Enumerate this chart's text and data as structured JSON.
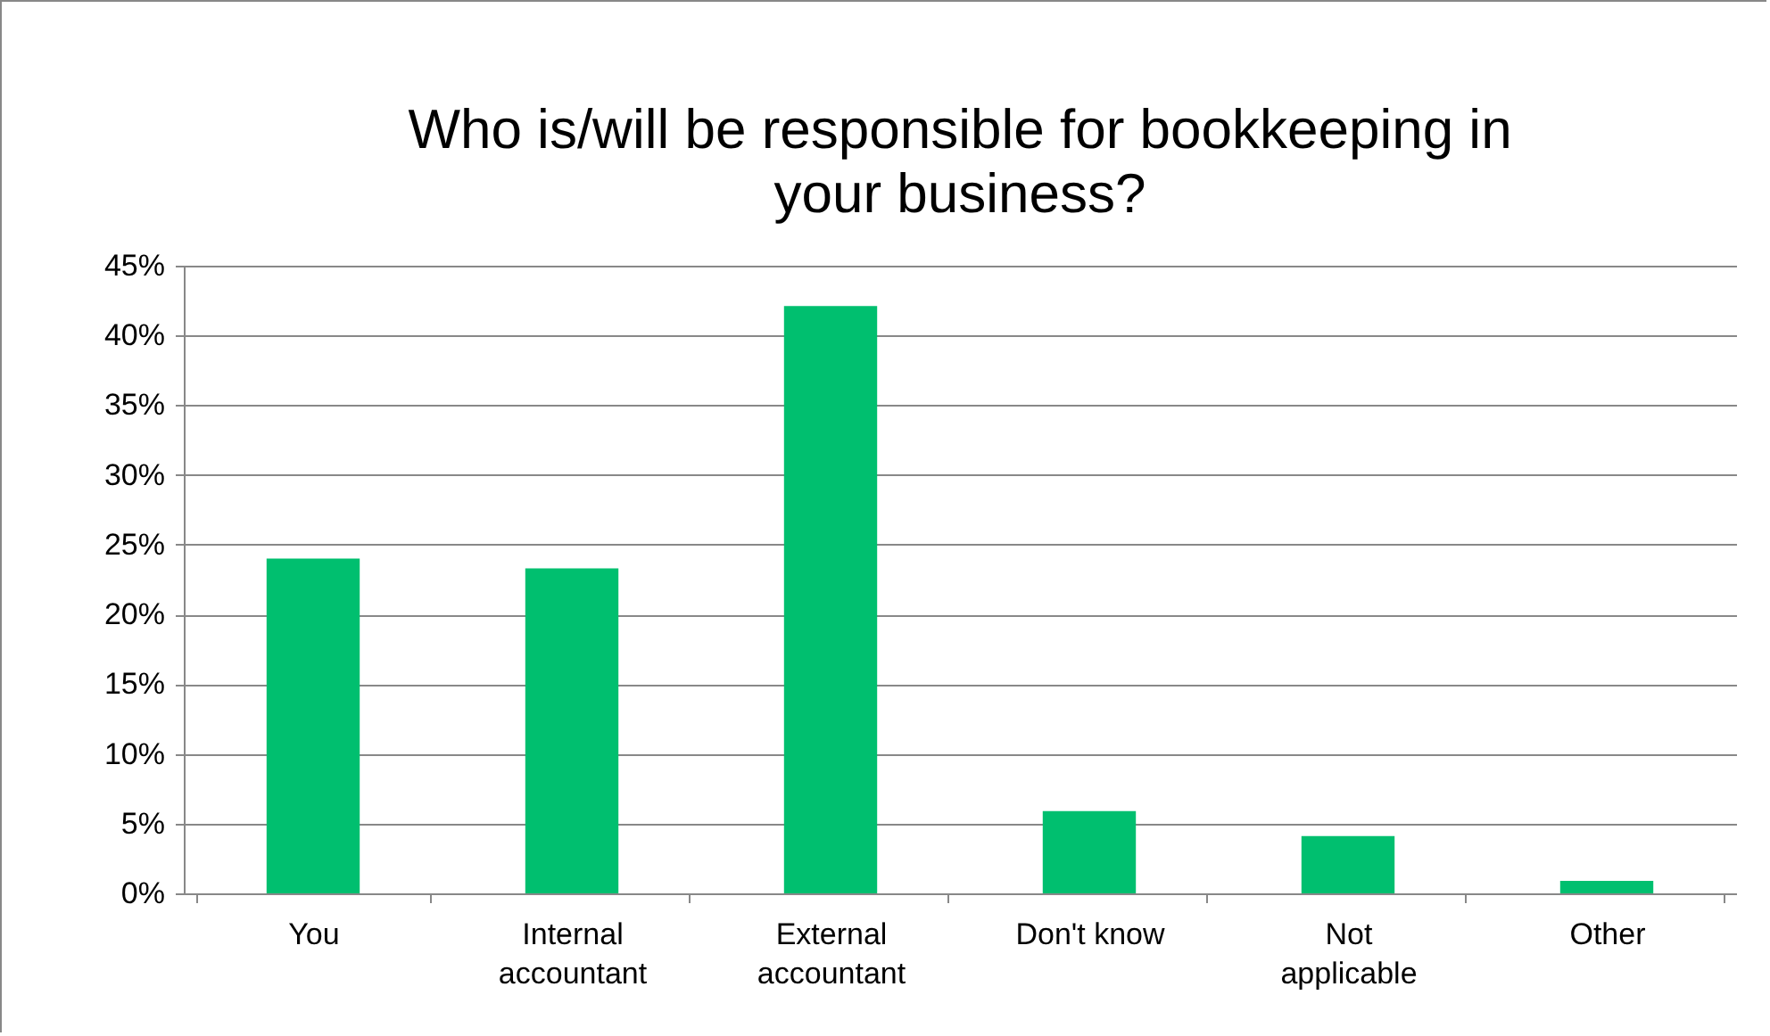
{
  "chart_data": {
    "type": "bar",
    "title": "Who is/will be responsible for bookkeeping in your business?",
    "categories": [
      "You",
      "Internal accountant",
      "External accountant",
      "Don't know",
      "Not applicable",
      "Other"
    ],
    "values": [
      24.0,
      23.3,
      42.1,
      5.9,
      4.1,
      0.9
    ],
    "color": "#00bf6f",
    "ylim": [
      0,
      45
    ],
    "yticks": [
      {
        "value": 0,
        "label": "0%"
      },
      {
        "value": 5,
        "label": "5%"
      },
      {
        "value": 10,
        "label": "10%"
      },
      {
        "value": 15,
        "label": "15%"
      },
      {
        "value": 20,
        "label": "20%"
      },
      {
        "value": 25,
        "label": "25%"
      },
      {
        "value": 30,
        "label": "30%"
      },
      {
        "value": 35,
        "label": "35%"
      },
      {
        "value": 40,
        "label": "40%"
      },
      {
        "value": 45,
        "label": "45%"
      }
    ],
    "grid": "y"
  }
}
